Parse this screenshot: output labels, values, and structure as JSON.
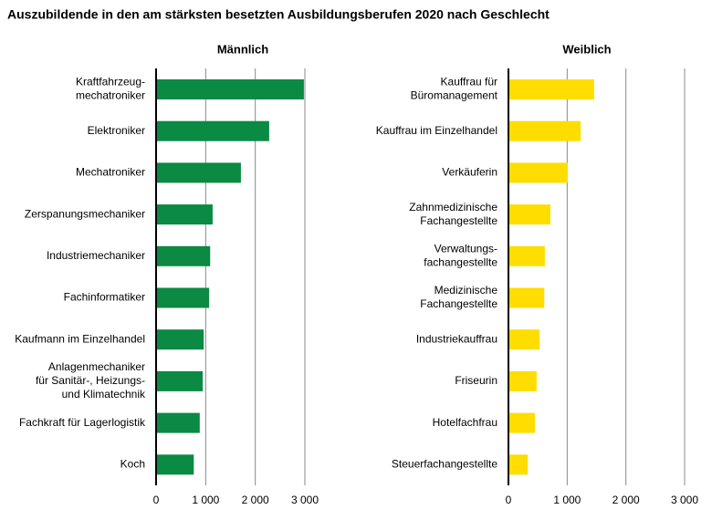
{
  "title": "Auszubildende in den am stärksten besetzten Ausbildungsberufen 2020 nach Geschlecht",
  "chart_data": [
    {
      "type": "bar",
      "title": "Männlich",
      "color": "#0a8a43",
      "categories": [
        [
          "Kraftfahrzeug-",
          "mechatroniker"
        ],
        [
          "Elektroniker"
        ],
        [
          "Mechatroniker"
        ],
        [
          "Zerspanungsmechaniker"
        ],
        [
          "Industriemechaniker"
        ],
        [
          "Fachinformatiker"
        ],
        [
          "Kaufmann im Einzelhandel"
        ],
        [
          "Anlagenmechaniker",
          "für Sanitär-, Heizungs-",
          "und Klimatechnik"
        ],
        [
          "Fachkraft für Lagerlogistik"
        ],
        [
          "Koch"
        ]
      ],
      "values": [
        2980,
        2280,
        1710,
        1140,
        1090,
        1070,
        960,
        940,
        880,
        760
      ],
      "xlim": [
        0,
        3000
      ],
      "xticks": [
        0,
        {
          "value": 1000,
          "label": "1 000"
        },
        {
          "value": 2000,
          "label": "2 000"
        },
        {
          "value": 3000,
          "label": "3 000"
        }
      ],
      "grid": true
    },
    {
      "type": "bar",
      "title": "Weiblich",
      "color": "#ffdd00",
      "categories": [
        [
          "Kauffrau für",
          "Büromanagement"
        ],
        [
          "Kauffrau im Einzelhandel"
        ],
        [
          "Verkäuferin"
        ],
        [
          "Zahnmedizinische",
          "Fachangestellte"
        ],
        [
          "Verwaltungs-",
          "fachangestellte"
        ],
        [
          "Medizinische",
          "Fachangestellte"
        ],
        [
          "Industriekauffrau"
        ],
        [
          "Friseurin"
        ],
        [
          "Hotelfachfrau"
        ],
        [
          "Steuerfachangestellte"
        ]
      ],
      "values": [
        1460,
        1230,
        1010,
        715,
        620,
        610,
        530,
        480,
        450,
        330
      ],
      "xlim": [
        0,
        3000
      ],
      "xticks": [
        0,
        {
          "value": 1000,
          "label": "1 000"
        },
        {
          "value": 2000,
          "label": "2 000"
        },
        {
          "value": 3000,
          "label": "3 000"
        }
      ],
      "grid": true
    }
  ]
}
